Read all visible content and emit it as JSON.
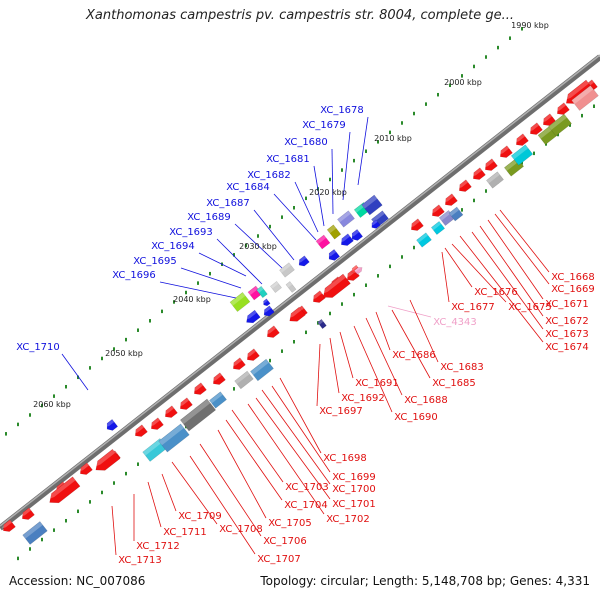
{
  "title": "Xanthomonas campestris pv. campestris str. 8004, complete ge...",
  "footer": {
    "accession": "Accession: NC_007086",
    "stats": "Topology: circular; Length: 5,148,708 bp; Genes: 4,331"
  },
  "kbp_labels": [
    "1990 kbp",
    "2000 kbp",
    "2010 kbp",
    "2020 kbp",
    "2030 kbp",
    "2040 kbp",
    "2050 kbp",
    "2060 kbp"
  ],
  "gene_labels_upper": [
    "XC_1678",
    "XC_1679",
    "XC_1680",
    "XC_1681",
    "XC_1682",
    "XC_1684",
    "XC_1687",
    "XC_1689",
    "XC_1693",
    "XC_1694",
    "XC_1695",
    "XC_1696",
    "XC_1710"
  ],
  "gene_labels_lower": [
    "XC_1668",
    "XC_1669",
    "XC_1671",
    "XC_1672",
    "XC_1673",
    "XC_1674",
    "XC_1675",
    "XC_1676",
    "XC_1677",
    "XC_4343",
    "XC_1683",
    "XC_1685",
    "XC_1686",
    "XC_1688",
    "XC_1690",
    "XC_1691",
    "XC_1692",
    "XC_1697",
    "XC_1698",
    "XC_1699",
    "XC_1700",
    "XC_1701",
    "XC_1702",
    "XC_1703",
    "XC_1704",
    "XC_1705",
    "XC_1706",
    "XC_1707",
    "XC_1708",
    "XC_1709",
    "XC_1711",
    "XC_1712",
    "XC_1713"
  ],
  "colors": {
    "upper_label": "#1010dd",
    "lower_label": "#e01010",
    "pink_label": "#f0a0c8",
    "backbone": "#808080",
    "tick": "#2a8a2a"
  }
}
